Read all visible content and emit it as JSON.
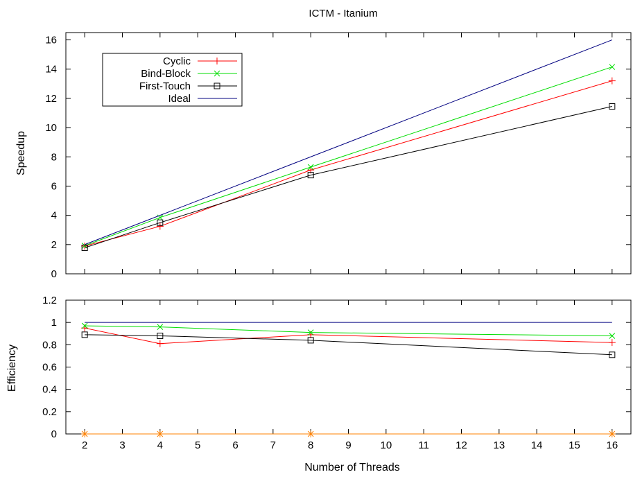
{
  "chart_data": [
    {
      "type": "line",
      "title": "ICTM - Itanium",
      "xlabel": "",
      "ylabel": "Speedup",
      "xlim": [
        1.5,
        16.5
      ],
      "ylim": [
        0,
        16.5
      ],
      "x_ticks": [
        2,
        3,
        4,
        5,
        6,
        7,
        8,
        9,
        10,
        11,
        12,
        13,
        14,
        15,
        16
      ],
      "y_ticks": [
        0,
        2,
        4,
        6,
        8,
        10,
        12,
        14,
        16
      ],
      "y_tick_labels": [
        "0",
        "2",
        "4",
        "6",
        "8",
        "10",
        "12",
        "14",
        "16"
      ],
      "legend_position": "top-left",
      "series": [
        {
          "name": "Cyclic",
          "color": "#ff0000",
          "marker": "plus",
          "x": [
            2,
            4,
            8,
            16
          ],
          "y": [
            1.9,
            3.25,
            7.1,
            13.2
          ]
        },
        {
          "name": "Bind-Block",
          "color": "#00dd00",
          "marker": "cross",
          "x": [
            2,
            4,
            8,
            16
          ],
          "y": [
            1.92,
            3.85,
            7.3,
            14.15
          ]
        },
        {
          "name": "First-Touch",
          "color": "#000000",
          "marker": "square",
          "x": [
            2,
            4,
            8,
            16
          ],
          "y": [
            1.78,
            3.5,
            6.75,
            11.45
          ]
        },
        {
          "name": "Ideal",
          "color": "#000080",
          "marker": "none",
          "x": [
            2,
            4,
            8,
            16
          ],
          "y": [
            2,
            4,
            8,
            16
          ]
        }
      ]
    },
    {
      "type": "line",
      "title": "",
      "xlabel": "Number of Threads",
      "ylabel": "Efficiency",
      "xlim": [
        1.5,
        16.5
      ],
      "ylim": [
        0,
        1.2
      ],
      "x_ticks": [
        2,
        3,
        4,
        5,
        6,
        7,
        8,
        9,
        10,
        11,
        12,
        13,
        14,
        15,
        16
      ],
      "y_ticks": [
        0,
        0.2,
        0.4,
        0.6,
        0.8,
        1,
        1.2
      ],
      "y_tick_labels": [
        "0",
        "0.2",
        "0.4",
        "0.6",
        "0.8",
        "1",
        "1.2"
      ],
      "series": [
        {
          "color": "#ff0000",
          "marker": "plus",
          "x": [
            2,
            4,
            8,
            16
          ],
          "y": [
            0.95,
            0.81,
            0.89,
            0.82
          ]
        },
        {
          "color": "#00dd00",
          "marker": "cross",
          "x": [
            2,
            4,
            8,
            16
          ],
          "y": [
            0.97,
            0.96,
            0.91,
            0.88
          ]
        },
        {
          "color": "#000000",
          "marker": "square",
          "x": [
            2,
            4,
            8,
            16
          ],
          "y": [
            0.89,
            0.88,
            0.84,
            0.71
          ]
        },
        {
          "color": "#000080",
          "marker": "none",
          "x": [
            2,
            4,
            8,
            16
          ],
          "y": [
            1,
            1,
            1,
            1
          ]
        },
        {
          "color": "#ff8000",
          "marker": "star",
          "x": [
            2,
            4,
            8,
            16
          ],
          "y": [
            0,
            0,
            0,
            0
          ]
        }
      ]
    }
  ]
}
